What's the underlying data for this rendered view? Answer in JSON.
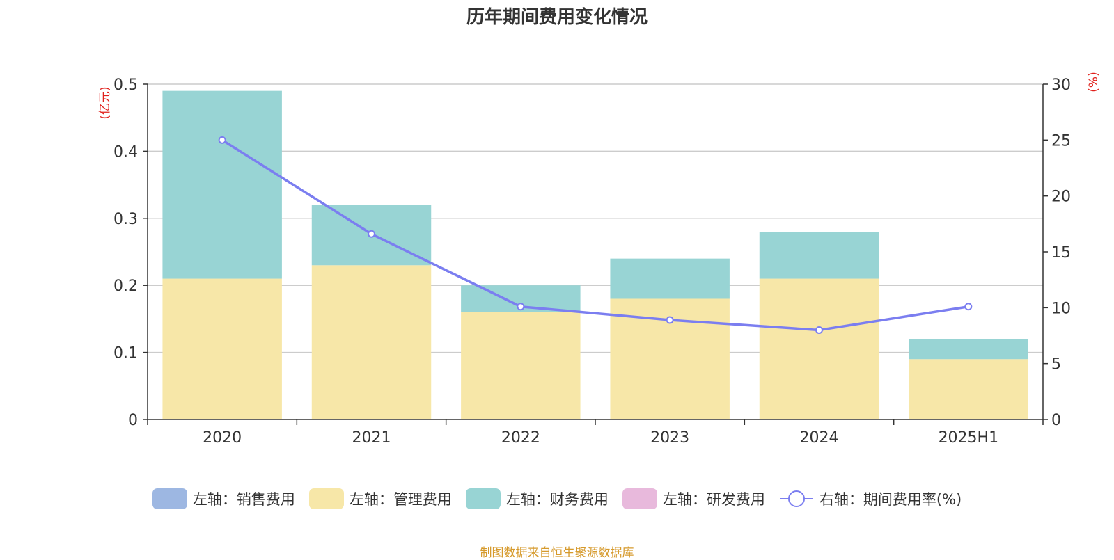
{
  "title": "历年期间费用变化情况",
  "source": "制图数据来自恒生聚源数据库",
  "chart_data": {
    "type": "bar",
    "stacked": true,
    "categories": [
      "2020",
      "2021",
      "2022",
      "2023",
      "2024",
      "2025H1"
    ],
    "left_axis": {
      "unit": "(亿元)",
      "ylim": [
        0,
        0.5
      ],
      "ticks": [
        "0",
        "0.1",
        "0.2",
        "0.3",
        "0.4",
        "0.5"
      ]
    },
    "right_axis": {
      "unit": "(%)",
      "ylim": [
        0,
        30
      ],
      "ticks": [
        "0",
        "5",
        "10",
        "15",
        "20",
        "25",
        "30"
      ]
    },
    "series": [
      {
        "name": "左轴：销售费用",
        "type": "bar",
        "axis": "left",
        "color": "#9db7e2",
        "values": [
          0,
          0,
          0,
          0,
          0,
          0
        ]
      },
      {
        "name": "左轴：管理费用",
        "type": "bar",
        "axis": "left",
        "color": "#f7e7a8",
        "values": [
          0.21,
          0.23,
          0.16,
          0.18,
          0.21,
          0.09
        ]
      },
      {
        "name": "左轴：财务费用",
        "type": "bar",
        "axis": "left",
        "color": "#98d4d4",
        "values": [
          0.28,
          0.09,
          0.04,
          0.06,
          0.07,
          0.03
        ]
      },
      {
        "name": "左轴：研发费用",
        "type": "bar",
        "axis": "left",
        "color": "#e8b9dc",
        "values": [
          0,
          0,
          0,
          0,
          0,
          0
        ]
      },
      {
        "name": "右轴：期间费用率(%)",
        "type": "line",
        "axis": "right",
        "color": "#7b7ef0",
        "values": [
          25.0,
          16.6,
          10.1,
          8.9,
          8.0,
          10.1
        ]
      }
    ],
    "grid": true,
    "legend_position": "bottom"
  }
}
